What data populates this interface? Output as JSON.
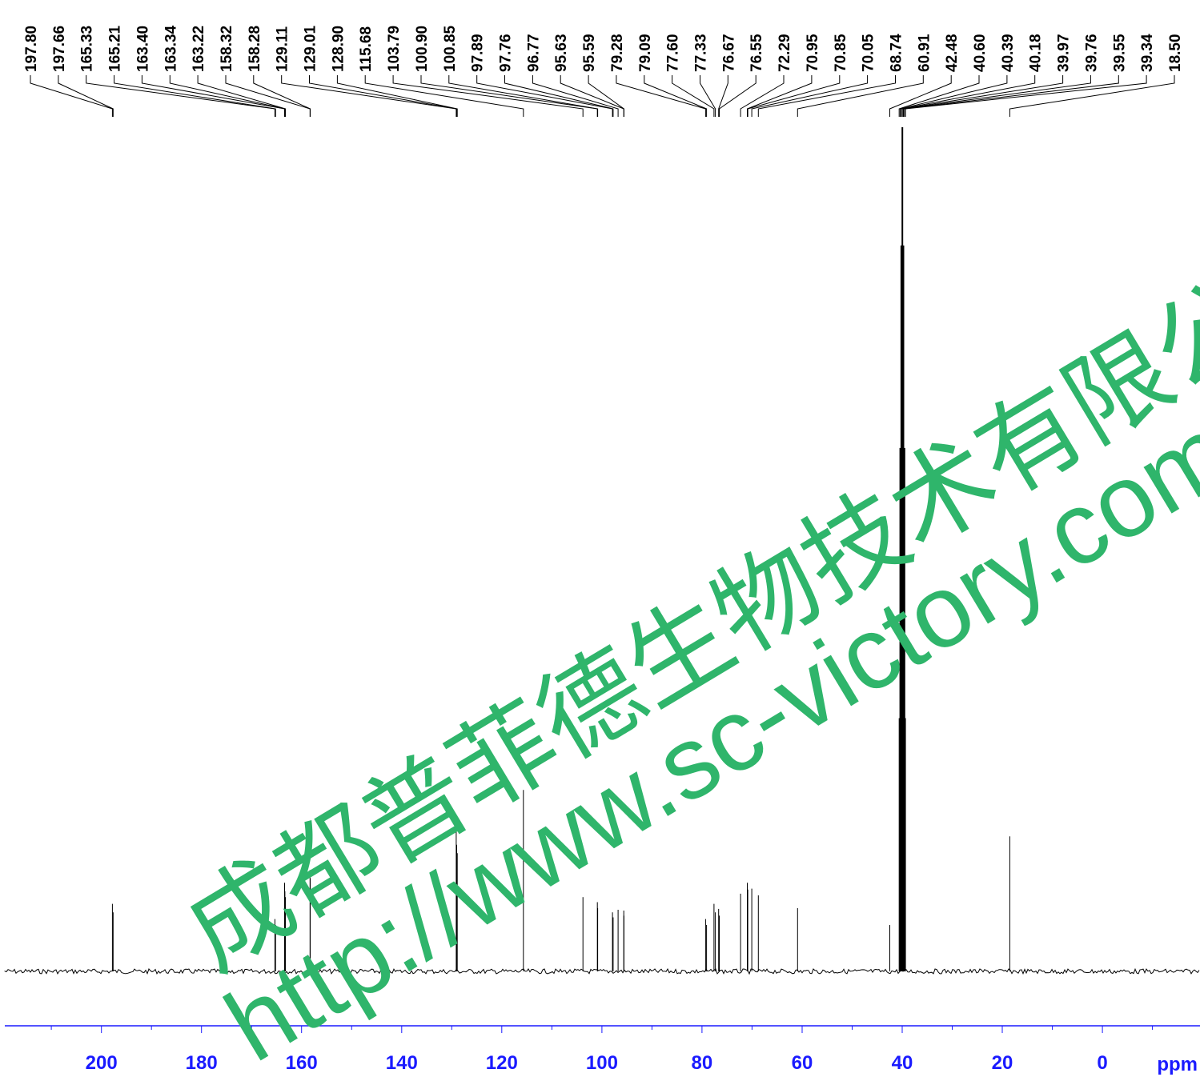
{
  "chart_data": {
    "type": "line",
    "title": "",
    "xlabel": "ppm",
    "ylabel": "",
    "xlim": [
      219.3,
      -19.5
    ],
    "x_axis_reversed": true,
    "x_ticks": [
      200,
      180,
      160,
      140,
      120,
      100,
      80,
      60,
      40,
      20,
      0
    ],
    "x_tick_labels": [
      "200",
      "180",
      "160",
      "140",
      "120",
      "100",
      "80",
      "60",
      "40",
      "20",
      "0"
    ],
    "grid": false,
    "legend": "none",
    "peak_labels": [
      "197.80",
      "197.66",
      "165.33",
      "165.21",
      "163.40",
      "163.34",
      "163.22",
      "158.32",
      "158.28",
      "129.11",
      "129.01",
      "128.90",
      "115.68",
      "103.79",
      "100.90",
      "100.85",
      "97.89",
      "97.76",
      "96.77",
      "95.63",
      "95.59",
      "79.28",
      "79.09",
      "77.60",
      "77.33",
      "76.67",
      "76.55",
      "72.29",
      "70.95",
      "70.85",
      "70.05",
      "68.74",
      "60.91",
      "42.48",
      "40.60",
      "40.39",
      "40.18",
      "39.97",
      "39.76",
      "39.55",
      "39.34",
      "18.50"
    ],
    "peaks": [
      {
        "x": 197.8,
        "y": 0.08
      },
      {
        "x": 197.66,
        "y": 0.07
      },
      {
        "x": 165.33,
        "y": 0.062
      },
      {
        "x": 165.21,
        "y": 0.055
      },
      {
        "x": 163.4,
        "y": 0.105
      },
      {
        "x": 163.34,
        "y": 0.095
      },
      {
        "x": 163.22,
        "y": 0.088
      },
      {
        "x": 158.32,
        "y": 0.12
      },
      {
        "x": 158.28,
        "y": 0.11
      },
      {
        "x": 129.11,
        "y": 0.165
      },
      {
        "x": 129.01,
        "y": 0.15
      },
      {
        "x": 128.9,
        "y": 0.14
      },
      {
        "x": 115.68,
        "y": 0.215
      },
      {
        "x": 103.79,
        "y": 0.088
      },
      {
        "x": 100.9,
        "y": 0.082
      },
      {
        "x": 100.85,
        "y": 0.075
      },
      {
        "x": 97.89,
        "y": 0.07
      },
      {
        "x": 97.76,
        "y": 0.064
      },
      {
        "x": 96.77,
        "y": 0.073
      },
      {
        "x": 95.63,
        "y": 0.072
      },
      {
        "x": 95.59,
        "y": 0.066
      },
      {
        "x": 79.28,
        "y": 0.062
      },
      {
        "x": 79.09,
        "y": 0.055
      },
      {
        "x": 77.6,
        "y": 0.08
      },
      {
        "x": 77.33,
        "y": 0.07
      },
      {
        "x": 76.67,
        "y": 0.074
      },
      {
        "x": 76.55,
        "y": 0.066
      },
      {
        "x": 72.29,
        "y": 0.092
      },
      {
        "x": 70.95,
        "y": 0.105
      },
      {
        "x": 70.85,
        "y": 0.097
      },
      {
        "x": 70.05,
        "y": 0.098
      },
      {
        "x": 68.74,
        "y": 0.09
      },
      {
        "x": 60.91,
        "y": 0.075
      },
      {
        "x": 42.48,
        "y": 0.055
      },
      {
        "x": 40.6,
        "y": 0.3
      },
      {
        "x": 40.39,
        "y": 0.62
      },
      {
        "x": 40.18,
        "y": 0.86
      },
      {
        "x": 39.97,
        "y": 1.0
      },
      {
        "x": 39.76,
        "y": 0.86
      },
      {
        "x": 39.55,
        "y": 0.62
      },
      {
        "x": 39.34,
        "y": 0.3
      },
      {
        "x": 18.5,
        "y": 0.16
      }
    ]
  },
  "watermark": {
    "line1": "成都普菲德生物技术有限公",
    "line2": "http://www.sc-victory.com",
    "color": "#2fb56b"
  },
  "colors": {
    "spectrum": "#000000",
    "axis": "#1a1aff"
  }
}
